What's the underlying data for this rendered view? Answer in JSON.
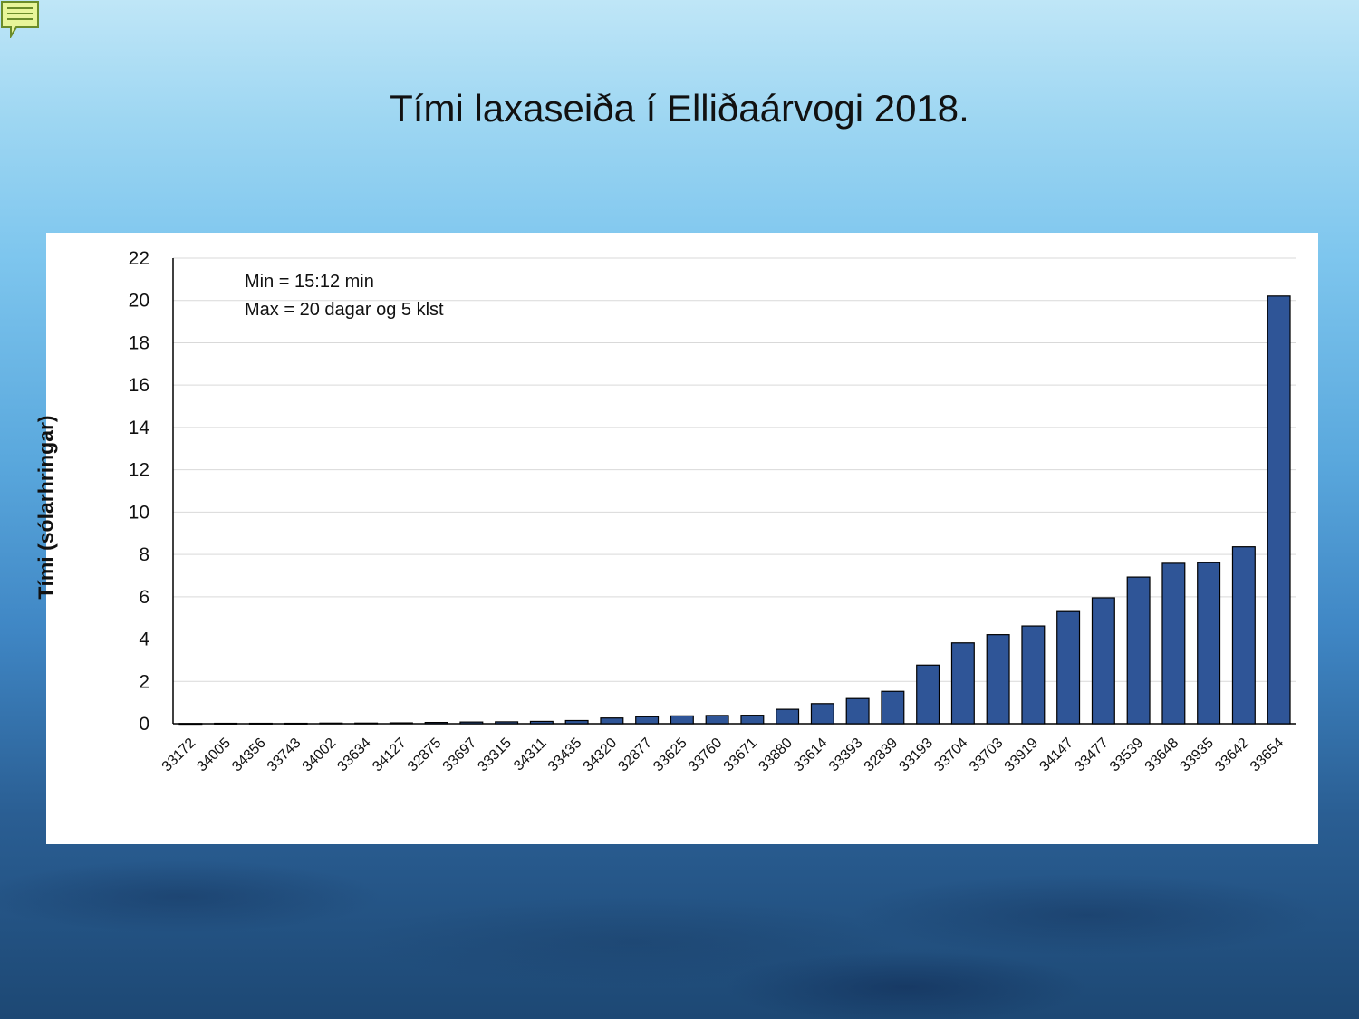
{
  "slide": {
    "title": "Tími laxaseiða í Elliðaárvogi 2018."
  },
  "colors": {
    "bar": "#2f5597",
    "bar_stroke": "#000000",
    "grid": "#d9d9d9"
  },
  "icons": {
    "note": "speech-note-icon"
  },
  "chart_data": {
    "type": "bar",
    "title": "",
    "xlabel": "",
    "ylabel": "Tími (sólarhringar)",
    "ylim": [
      0,
      22
    ],
    "yticks": [
      0,
      2,
      4,
      6,
      8,
      10,
      12,
      14,
      16,
      18,
      20,
      22
    ],
    "grid": true,
    "annotations": [
      "Min = 15:12 min",
      "Max = 20 dagar og 5 klst"
    ],
    "categories": [
      "33172",
      "34005",
      "34356",
      "33743",
      "34002",
      "33634",
      "34127",
      "32875",
      "33697",
      "33315",
      "34311",
      "33435",
      "34320",
      "32877",
      "33625",
      "33760",
      "33671",
      "33880",
      "33614",
      "33393",
      "32839",
      "33193",
      "33704",
      "33703",
      "33919",
      "34147",
      "33477",
      "33539",
      "33648",
      "33935",
      "33642",
      "33654"
    ],
    "values": [
      0.01,
      0.02,
      0.02,
      0.02,
      0.03,
      0.03,
      0.04,
      0.06,
      0.08,
      0.09,
      0.11,
      0.15,
      0.27,
      0.33,
      0.37,
      0.39,
      0.4,
      0.68,
      0.95,
      1.19,
      1.53,
      2.77,
      3.82,
      4.21,
      4.62,
      5.3,
      5.95,
      6.93,
      7.58,
      7.61,
      8.36,
      20.21
    ]
  }
}
